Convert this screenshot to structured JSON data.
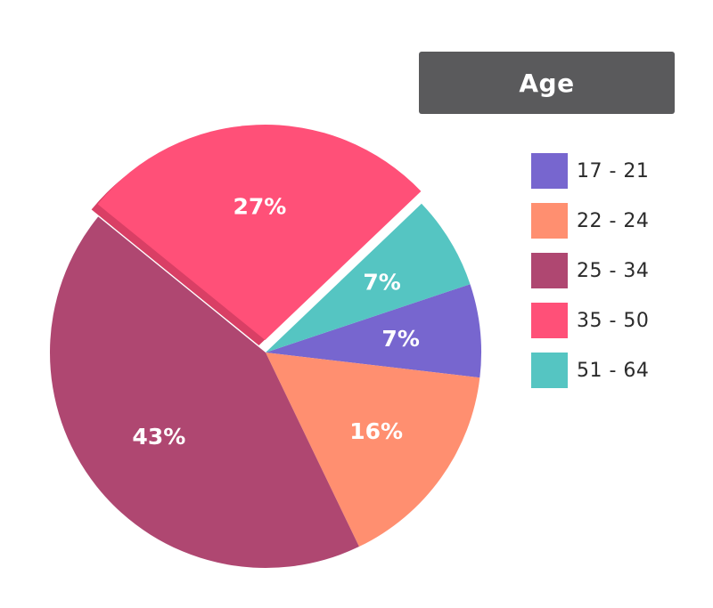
{
  "chart_data": {
    "type": "pie",
    "title": "Age",
    "legend_position": "right",
    "categories": [
      "17 - 21",
      "22 - 24",
      "25 - 34",
      "35 - 50",
      "51 - 64"
    ],
    "values": [
      7,
      16,
      43,
      27,
      7
    ],
    "labels": [
      "7%",
      "16%",
      "43%",
      "27%",
      "7%"
    ],
    "colors": [
      "#7766cf",
      "#ff8f70",
      "#af4771",
      "#ff5078",
      "#55c5c2"
    ],
    "exploded": "35 - 50"
  }
}
